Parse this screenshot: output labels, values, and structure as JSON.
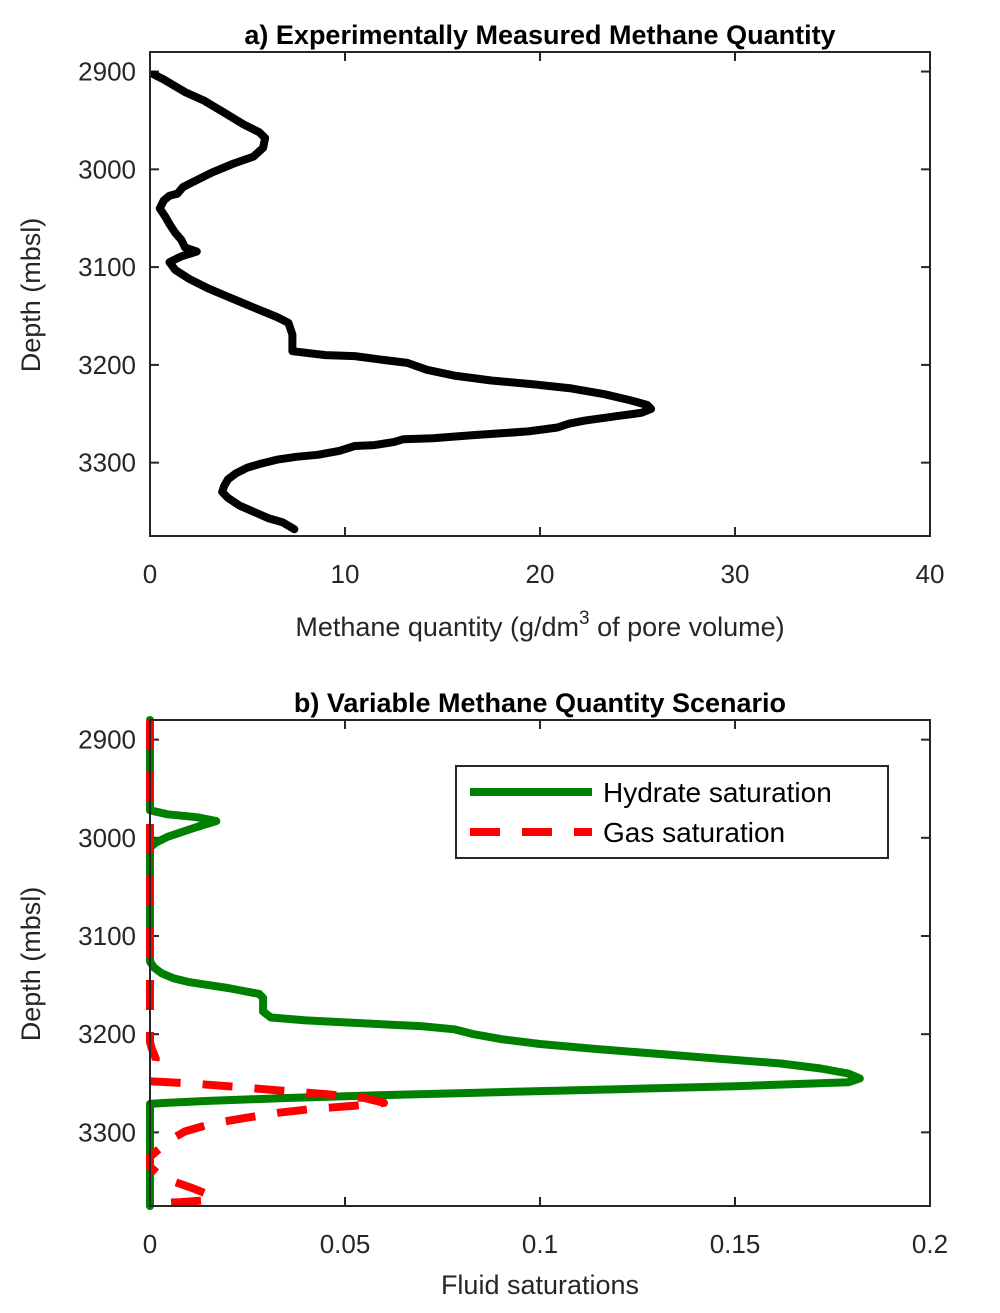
{
  "chart_data": [
    {
      "type": "line",
      "title": "a) Experimentally Measured Methane Quantity",
      "xlabel_main": "Methane quantity (g/dm",
      "xlabel_sup": "3",
      "xlabel_tail": " of pore volume)",
      "ylabel": "Depth (mbsl)",
      "xlim": [
        0,
        40
      ],
      "ylim": [
        2880,
        3375
      ],
      "y_reversed": true,
      "grid": false,
      "xticks": [
        "0",
        "10",
        "20",
        "30",
        "40"
      ],
      "yticks": [
        "2900",
        "3000",
        "3100",
        "3200",
        "3300"
      ],
      "series": [
        {
          "color": "#000000",
          "style": "solid",
          "points": [
            [
              0.2,
              2903
            ],
            [
              0.7,
              2908
            ],
            [
              1.2,
              2914
            ],
            [
              1.8,
              2921
            ],
            [
              2.8,
              2930
            ],
            [
              3.8,
              2942
            ],
            [
              4.8,
              2954
            ],
            [
              5.6,
              2962
            ],
            [
              5.9,
              2968
            ],
            [
              5.8,
              2978
            ],
            [
              5.3,
              2987
            ],
            [
              4.3,
              2994
            ],
            [
              3.2,
              3003
            ],
            [
              2.3,
              3012
            ],
            [
              1.7,
              3018
            ],
            [
              1.4,
              3025
            ],
            [
              1.0,
              3027
            ],
            [
              0.7,
              3032
            ],
            [
              0.5,
              3040
            ],
            [
              0.8,
              3049
            ],
            [
              1.0,
              3056
            ],
            [
              1.3,
              3065
            ],
            [
              1.6,
              3072
            ],
            [
              1.8,
              3080
            ],
            [
              2.4,
              3084
            ],
            [
              1.6,
              3089
            ],
            [
              1.0,
              3095
            ],
            [
              1.3,
              3103
            ],
            [
              2.0,
              3112
            ],
            [
              3.0,
              3122
            ],
            [
              4.2,
              3132
            ],
            [
              5.4,
              3142
            ],
            [
              6.5,
              3151
            ],
            [
              7.1,
              3157
            ],
            [
              7.3,
              3169
            ],
            [
              7.3,
              3186
            ],
            [
              9.0,
              3190
            ],
            [
              10.5,
              3191
            ],
            [
              12.0,
              3195
            ],
            [
              13.2,
              3198
            ],
            [
              14.2,
              3205
            ],
            [
              15.6,
              3211
            ],
            [
              17.5,
              3216
            ],
            [
              19.7,
              3220
            ],
            [
              21.6,
              3224
            ],
            [
              23.3,
              3230
            ],
            [
              24.6,
              3236
            ],
            [
              25.5,
              3241
            ],
            [
              25.7,
              3245
            ],
            [
              25.2,
              3249
            ],
            [
              24.1,
              3252
            ],
            [
              22.3,
              3257
            ],
            [
              21.5,
              3260
            ],
            [
              20.9,
              3264
            ],
            [
              19.4,
              3268
            ],
            [
              18.0,
              3270
            ],
            [
              16.5,
              3272
            ],
            [
              14.5,
              3275
            ],
            [
              13.0,
              3276
            ],
            [
              12.5,
              3279
            ],
            [
              11.5,
              3282
            ],
            [
              10.5,
              3283
            ],
            [
              9.7,
              3288
            ],
            [
              8.6,
              3292
            ],
            [
              7.5,
              3294
            ],
            [
              6.5,
              3297
            ],
            [
              5.7,
              3301
            ],
            [
              5.0,
              3305
            ],
            [
              4.4,
              3311
            ],
            [
              4.0,
              3317
            ],
            [
              3.8,
              3324
            ],
            [
              3.7,
              3330
            ],
            [
              4.0,
              3336
            ],
            [
              4.6,
              3344
            ],
            [
              5.4,
              3351
            ],
            [
              6.1,
              3357
            ],
            [
              6.8,
              3361
            ],
            [
              7.4,
              3368
            ]
          ]
        }
      ]
    },
    {
      "type": "line",
      "title": "b) Variable Methane Quantity Scenario",
      "xlabel": "Fluid saturations",
      "ylabel": "Depth (mbsl)",
      "xlim": [
        0,
        0.2
      ],
      "ylim": [
        2880,
        3375
      ],
      "y_reversed": true,
      "grid": false,
      "legend_position": "top-right",
      "xticks": [
        "0",
        "0.05",
        "0.1",
        "0.15",
        "0.2"
      ],
      "yticks": [
        "2900",
        "3000",
        "3100",
        "3200",
        "3300"
      ],
      "series": [
        {
          "name": "Hydrate saturation",
          "color": "#008000",
          "style": "solid",
          "points": [
            [
              0,
              2880
            ],
            [
              0,
              2972
            ],
            [
              0.0045,
              2976
            ],
            [
              0.012,
              2979
            ],
            [
              0.017,
              2983
            ],
            [
              0.012,
              2989
            ],
            [
              0.0045,
              2999
            ],
            [
              0.0015,
              3005
            ],
            [
              0,
              3010
            ],
            [
              0,
              3126
            ],
            [
              0.001,
              3132
            ],
            [
              0.003,
              3138
            ],
            [
              0.006,
              3143
            ],
            [
              0.01,
              3147
            ],
            [
              0.015,
              3150
            ],
            [
              0.02,
              3153
            ],
            [
              0.024,
              3156
            ],
            [
              0.028,
              3159
            ],
            [
              0.029,
              3163
            ],
            [
              0.029,
              3177
            ],
            [
              0.031,
              3183
            ],
            [
              0.04,
              3186
            ],
            [
              0.05,
              3188
            ],
            [
              0.06,
              3190
            ],
            [
              0.07,
              3192
            ],
            [
              0.078,
              3195
            ],
            [
              0.083,
              3200
            ],
            [
              0.09,
              3205
            ],
            [
              0.1,
              3210
            ],
            [
              0.114,
              3215
            ],
            [
              0.13,
              3220
            ],
            [
              0.146,
              3225
            ],
            [
              0.162,
              3230
            ],
            [
              0.172,
              3235
            ],
            [
              0.179,
              3240
            ],
            [
              0.182,
              3245
            ],
            [
              0.179,
              3249
            ],
            [
              0.15,
              3253
            ],
            [
              0.12,
              3256
            ],
            [
              0.09,
              3259
            ],
            [
              0.06,
              3262
            ],
            [
              0.035,
              3265
            ],
            [
              0.015,
              3268
            ],
            [
              0.004,
              3270
            ],
            [
              0,
              3271
            ],
            [
              0,
              3375
            ]
          ]
        },
        {
          "name": "Gas saturation",
          "color": "#ff0000",
          "style": "dashed",
          "points": [
            [
              0,
              2880
            ],
            [
              0,
              3208
            ],
            [
              0.0005,
              3215
            ],
            [
              0.0015,
              3225
            ],
            [
              0.001,
              3240
            ],
            [
              0,
              3248
            ],
            [
              0.01,
              3250
            ],
            [
              0.02,
              3253
            ],
            [
              0.032,
              3257
            ],
            [
              0.045,
              3261
            ],
            [
              0.055,
              3265
            ],
            [
              0.06,
              3270
            ],
            [
              0.052,
              3273
            ],
            [
              0.042,
              3276
            ],
            [
              0.033,
              3280
            ],
            [
              0.025,
              3285
            ],
            [
              0.016,
              3291
            ],
            [
              0.009,
              3299
            ],
            [
              0.005,
              3308
            ],
            [
              0.002,
              3318
            ],
            [
              0,
              3325
            ],
            [
              0,
              3335
            ],
            [
              0.002,
              3342
            ],
            [
              0.006,
              3350
            ],
            [
              0.011,
              3357
            ],
            [
              0.016,
              3365
            ],
            [
              0.015,
              3369
            ],
            [
              0.008,
              3371
            ],
            [
              0.002,
              3372
            ],
            [
              0,
              3373
            ]
          ]
        }
      ]
    }
  ]
}
